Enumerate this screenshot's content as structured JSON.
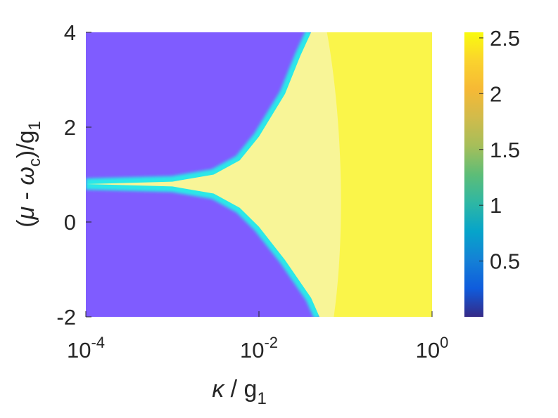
{
  "chart_data": {
    "type": "heatmap",
    "x_scale": "log",
    "xlim": [
      0.0001,
      1
    ],
    "ylim": [
      -2,
      4
    ],
    "x_ticks": [
      {
        "value": 0.0001,
        "base": "10",
        "exp": "-4"
      },
      {
        "value": 0.01,
        "base": "10",
        "exp": "-2"
      },
      {
        "value": 1,
        "base": "10",
        "exp": "0"
      }
    ],
    "y_ticks": [
      {
        "value": -2,
        "label": "-2"
      },
      {
        "value": 0,
        "label": "0"
      },
      {
        "value": 2,
        "label": "2"
      },
      {
        "value": 4,
        "label": "4"
      }
    ],
    "xlabel": {
      "kappa": "κ",
      "rest": " / g",
      "sub": "1"
    },
    "ylabel": {
      "open": "(",
      "mu": "μ",
      "minus": " - ",
      "omega": "ω",
      "sub_c": "c",
      "close": ")/g",
      "sub_1": "1"
    },
    "colorbar": {
      "colormap": "parula",
      "clim": [
        0,
        2.55
      ],
      "ticks": [
        {
          "value": 0.5,
          "label": "0.5"
        },
        {
          "value": 1,
          "label": "1"
        },
        {
          "value": 1.5,
          "label": "1.5"
        },
        {
          "value": 2,
          "label": "2"
        },
        {
          "value": 2.5,
          "label": "2.5"
        }
      ]
    },
    "regions": {
      "low_value": 0.3,
      "high_value": 2.5,
      "transition_value": 1.2,
      "cusp_y": 0.8,
      "upper_boundary": [
        {
          "x": 0.0001,
          "y": 0.8
        },
        {
          "x": 0.001,
          "y": 0.85
        },
        {
          "x": 0.003,
          "y": 1.0
        },
        {
          "x": 0.006,
          "y": 1.3
        },
        {
          "x": 0.01,
          "y": 1.8
        },
        {
          "x": 0.02,
          "y": 2.7
        },
        {
          "x": 0.03,
          "y": 3.5
        },
        {
          "x": 0.04,
          "y": 4.0
        }
      ],
      "lower_boundary": [
        {
          "x": 0.0001,
          "y": 0.8
        },
        {
          "x": 0.001,
          "y": 0.75
        },
        {
          "x": 0.003,
          "y": 0.6
        },
        {
          "x": 0.006,
          "y": 0.3
        },
        {
          "x": 0.01,
          "y": -0.1
        },
        {
          "x": 0.02,
          "y": -0.8
        },
        {
          "x": 0.04,
          "y": -1.6
        },
        {
          "x": 0.05,
          "y": -2.0
        }
      ],
      "colors": {
        "low": "#7f5cff",
        "transition": "#2ce8e8",
        "high": "#faf54a",
        "high_soft": "#f8f597"
      }
    }
  }
}
